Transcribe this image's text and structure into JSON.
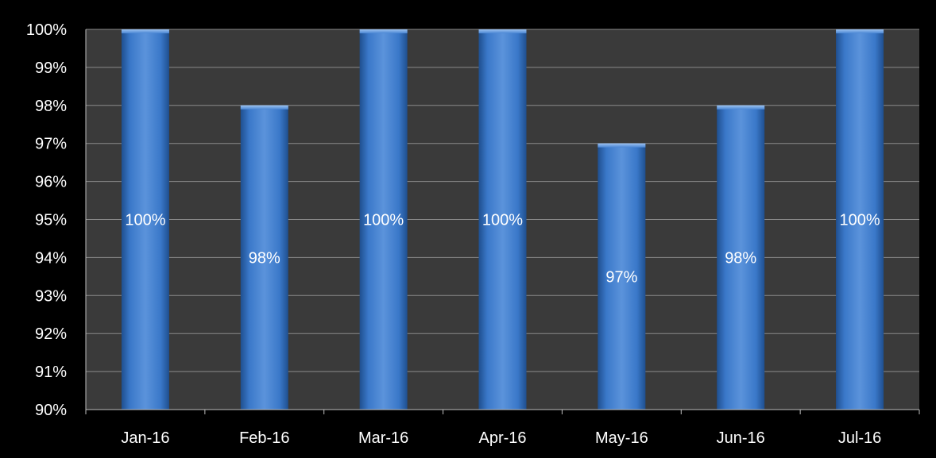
{
  "chart_data": {
    "type": "bar",
    "categories": [
      "Jan-16",
      "Feb-16",
      "Mar-16",
      "Apr-16",
      "May-16",
      "Jun-16",
      "Jul-16"
    ],
    "values": [
      100,
      98,
      100,
      100,
      97,
      98,
      100
    ],
    "data_labels": [
      "100%",
      "98%",
      "100%",
      "100%",
      "97%",
      "98%",
      "100%"
    ],
    "ylim": [
      90,
      100
    ],
    "y_ticks": [
      90,
      91,
      92,
      93,
      94,
      95,
      96,
      97,
      98,
      99,
      100
    ],
    "y_tick_labels": [
      "90%",
      "91%",
      "92%",
      "93%",
      "94%",
      "95%",
      "96%",
      "97%",
      "98%",
      "99%",
      "100%"
    ],
    "grid": true,
    "legend": "none",
    "colors": {
      "background": "#000000",
      "plot_area": "#3a3a3a",
      "gridline": "#8a8a8a",
      "axis": "#bfbfbf",
      "bar_light": "#5b93db",
      "bar_mid": "#3a78c9",
      "bar_dark": "#1f4f8f",
      "text": "#ffffff"
    }
  }
}
